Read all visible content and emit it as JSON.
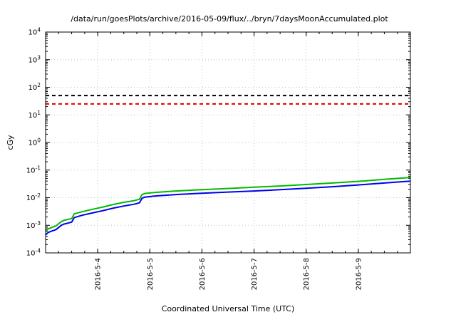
{
  "chart_data": {
    "type": "line",
    "title": "/data/run/goesPlots/archive/2016-05-09/flux/../bryn/7daysMoonAccumulated.plot",
    "xlabel": "Coordinated Universal Time (UTC)",
    "ylabel": "cGy",
    "grid": true,
    "legend": false,
    "x_axis": {
      "lim": [
        3.0,
        10.0
      ],
      "ticks": [
        {
          "x": 4,
          "label": "2016-5-4"
        },
        {
          "x": 5,
          "label": "2016-5-5"
        },
        {
          "x": 6,
          "label": "2016-5-6"
        },
        {
          "x": 7,
          "label": "2016-5-7"
        },
        {
          "x": 8,
          "label": "2016-5-8"
        },
        {
          "x": 9,
          "label": "2016-5-9"
        }
      ]
    },
    "y_axis": {
      "scale": "log10",
      "exp_lim": [
        -4,
        4
      ],
      "tick_exponents": [
        -4,
        -3,
        -2,
        -1,
        0,
        1,
        2,
        3,
        4
      ]
    },
    "thresholds": [
      {
        "name": "black-dose-limit",
        "value": 50,
        "color": "#000000",
        "style": "dashed"
      },
      {
        "name": "red-dose-limit",
        "value": 25,
        "color": "#dd0000",
        "style": "dashed"
      }
    ],
    "series": [
      {
        "name": "accumulated-dose-blue",
        "color": "#0000ee",
        "x": [
          3.0,
          3.05,
          3.1,
          3.2,
          3.3,
          3.35,
          3.5,
          3.55,
          3.7,
          3.9,
          4.1,
          4.3,
          4.5,
          4.7,
          4.8,
          4.85,
          4.9,
          5.1,
          5.5,
          6.0,
          6.5,
          7.0,
          7.5,
          8.0,
          8.5,
          9.0,
          9.5,
          10.0
        ],
        "y": [
          0.00045,
          0.00055,
          0.0006,
          0.0007,
          0.001,
          0.0011,
          0.0013,
          0.0019,
          0.0023,
          0.0028,
          0.0034,
          0.0042,
          0.005,
          0.0058,
          0.0065,
          0.0095,
          0.0105,
          0.0115,
          0.013,
          0.0145,
          0.016,
          0.0175,
          0.0195,
          0.022,
          0.025,
          0.029,
          0.034,
          0.04
        ]
      },
      {
        "name": "accumulated-dose-green",
        "color": "#00bb00",
        "x": [
          3.0,
          3.05,
          3.1,
          3.2,
          3.3,
          3.35,
          3.5,
          3.55,
          3.7,
          3.9,
          4.1,
          4.3,
          4.5,
          4.7,
          4.8,
          4.85,
          4.9,
          5.1,
          5.5,
          6.0,
          6.5,
          7.0,
          7.5,
          8.0,
          8.5,
          9.0,
          9.5,
          10.0
        ],
        "y": [
          0.0006,
          0.00074,
          0.00081,
          0.00095,
          0.00135,
          0.0015,
          0.00175,
          0.0026,
          0.0031,
          0.0038,
          0.0046,
          0.0057,
          0.0068,
          0.0078,
          0.0088,
          0.0128,
          0.0142,
          0.0155,
          0.0175,
          0.0195,
          0.0215,
          0.024,
          0.0265,
          0.03,
          0.034,
          0.039,
          0.046,
          0.054
        ]
      }
    ]
  }
}
